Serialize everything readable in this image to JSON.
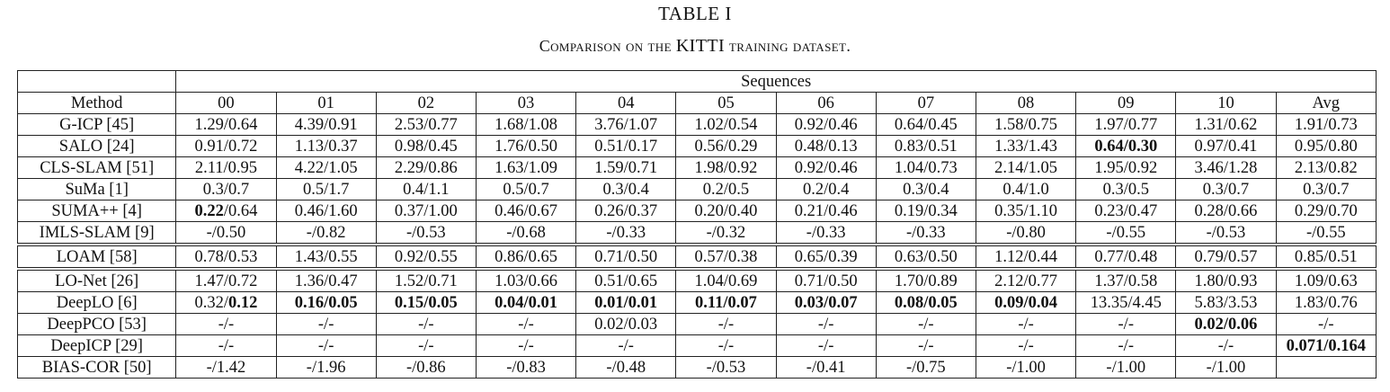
{
  "caption": {
    "label": "TABLE I",
    "title_prefix": "Comparison on the ",
    "title_dataset": "KITTI",
    "title_suffix": " training dataset."
  },
  "table": {
    "method_header": "Method",
    "group_header": "Sequences",
    "columns": [
      "00",
      "01",
      "02",
      "03",
      "04",
      "05",
      "06",
      "07",
      "08",
      "09",
      "10",
      "Avg"
    ],
    "groups": [
      [
        {
          "method": "G-ICP [45]",
          "cells": [
            {
              "t": "1.29/0.64"
            },
            {
              "t": "4.39/0.91"
            },
            {
              "t": "2.53/0.77"
            },
            {
              "t": "1.68/1.08"
            },
            {
              "t": "3.76/1.07"
            },
            {
              "t": "1.02/0.54"
            },
            {
              "t": "0.92/0.46"
            },
            {
              "t": "0.64/0.45"
            },
            {
              "t": "1.58/0.75"
            },
            {
              "t": "1.97/0.77"
            },
            {
              "t": "1.31/0.62"
            },
            {
              "t": "1.91/0.73"
            }
          ]
        },
        {
          "method": "SALO [24]",
          "cells": [
            {
              "t": "0.91/0.72"
            },
            {
              "t": "1.13/0.37"
            },
            {
              "t": "0.98/0.45"
            },
            {
              "t": "1.76/0.50"
            },
            {
              "t": "0.51/0.17"
            },
            {
              "t": "0.56/0.29"
            },
            {
              "t": "0.48/0.13"
            },
            {
              "t": "0.83/0.51"
            },
            {
              "t": "1.33/1.43"
            },
            {
              "t": "0.64/0.30",
              "b": true
            },
            {
              "t": "0.97/0.41"
            },
            {
              "t": "0.95/0.80"
            }
          ]
        },
        {
          "method": "CLS-SLAM [51]",
          "cells": [
            {
              "t": "2.11/0.95"
            },
            {
              "t": "4.22/1.05"
            },
            {
              "t": "2.29/0.86"
            },
            {
              "t": "1.63/1.09"
            },
            {
              "t": "1.59/0.71"
            },
            {
              "t": "1.98/0.92"
            },
            {
              "t": "0.92/0.46"
            },
            {
              "t": "1.04/0.73"
            },
            {
              "t": "2.14/1.05"
            },
            {
              "t": "1.95/0.92"
            },
            {
              "t": "3.46/1.28"
            },
            {
              "t": "2.13/0.82"
            }
          ]
        },
        {
          "method": "SuMa [1]",
          "cells": [
            {
              "t": "0.3/0.7"
            },
            {
              "t": "0.5/1.7"
            },
            {
              "t": "0.4/1.1"
            },
            {
              "t": "0.5/0.7"
            },
            {
              "t": "0.3/0.4"
            },
            {
              "t": "0.2/0.5"
            },
            {
              "t": "0.2/0.4"
            },
            {
              "t": "0.3/0.4"
            },
            {
              "t": "0.4/1.0"
            },
            {
              "t": "0.3/0.5"
            },
            {
              "t": "0.3/0.7"
            },
            {
              "t": "0.3/0.7"
            }
          ]
        },
        {
          "method": "SUMA++ [4]",
          "cells": [
            {
              "p": [
                {
                  "t": "0.22",
                  "b": true
                },
                {
                  "t": "/0.64"
                }
              ]
            },
            {
              "t": "0.46/1.60"
            },
            {
              "t": "0.37/1.00"
            },
            {
              "t": "0.46/0.67"
            },
            {
              "t": "0.26/0.37"
            },
            {
              "t": "0.20/0.40"
            },
            {
              "t": "0.21/0.46"
            },
            {
              "t": "0.19/0.34"
            },
            {
              "t": "0.35/1.10"
            },
            {
              "t": "0.23/0.47"
            },
            {
              "t": "0.28/0.66"
            },
            {
              "t": "0.29/0.70"
            }
          ]
        },
        {
          "method": "IMLS-SLAM [9]",
          "cells": [
            {
              "t": "-/0.50"
            },
            {
              "t": "-/0.82"
            },
            {
              "t": "-/0.53"
            },
            {
              "t": "-/0.68"
            },
            {
              "t": "-/0.33"
            },
            {
              "t": "-/0.32"
            },
            {
              "t": "-/0.33"
            },
            {
              "t": "-/0.33"
            },
            {
              "t": "-/0.80"
            },
            {
              "t": "-/0.55"
            },
            {
              "t": "-/0.53"
            },
            {
              "t": "-/0.55"
            }
          ]
        }
      ],
      [
        {
          "method": "LOAM [58]",
          "cells": [
            {
              "t": "0.78/0.53"
            },
            {
              "t": "1.43/0.55"
            },
            {
              "t": "0.92/0.55"
            },
            {
              "t": "0.86/0.65"
            },
            {
              "t": "0.71/0.50"
            },
            {
              "t": "0.57/0.38"
            },
            {
              "t": "0.65/0.39"
            },
            {
              "t": "0.63/0.50"
            },
            {
              "t": "1.12/0.44"
            },
            {
              "t": "0.77/0.48"
            },
            {
              "t": "0.79/0.57"
            },
            {
              "t": "0.85/0.51"
            }
          ]
        }
      ],
      [
        {
          "method": "LO-Net [26]",
          "cells": [
            {
              "t": "1.47/0.72"
            },
            {
              "t": "1.36/0.47"
            },
            {
              "t": "1.52/0.71"
            },
            {
              "t": "1.03/0.66"
            },
            {
              "t": "0.51/0.65"
            },
            {
              "t": "1.04/0.69"
            },
            {
              "t": "0.71/0.50"
            },
            {
              "t": "1.70/0.89"
            },
            {
              "t": "2.12/0.77"
            },
            {
              "t": "1.37/0.58"
            },
            {
              "t": "1.80/0.93"
            },
            {
              "t": "1.09/0.63"
            }
          ]
        },
        {
          "method": "DeepLO [6]",
          "cells": [
            {
              "p": [
                {
                  "t": "0.32/"
                },
                {
                  "t": "0.12",
                  "b": true
                }
              ]
            },
            {
              "t": "0.16/0.05",
              "b": true
            },
            {
              "t": "0.15/0.05",
              "b": true
            },
            {
              "t": "0.04/0.01",
              "b": true
            },
            {
              "t": "0.01/0.01",
              "b": true
            },
            {
              "t": "0.11/0.07",
              "b": true
            },
            {
              "t": "0.03/0.07",
              "b": true
            },
            {
              "t": "0.08/0.05",
              "b": true
            },
            {
              "t": "0.09/0.04",
              "b": true
            },
            {
              "t": "13.35/4.45"
            },
            {
              "t": "5.83/3.53"
            },
            {
              "t": "1.83/0.76"
            }
          ]
        },
        {
          "method": "DeepPCO [53]",
          "cells": [
            {
              "t": "-/-"
            },
            {
              "t": "-/-"
            },
            {
              "t": "-/-"
            },
            {
              "t": "-/-"
            },
            {
              "t": "0.02/0.03"
            },
            {
              "t": "-/-"
            },
            {
              "t": "-/-"
            },
            {
              "t": "-/-"
            },
            {
              "t": "-/-"
            },
            {
              "t": "-/-"
            },
            {
              "t": "0.02/0.06",
              "b": true
            },
            {
              "t": "-/-"
            }
          ]
        },
        {
          "method": "DeepICP [29]",
          "cells": [
            {
              "t": "-/-"
            },
            {
              "t": "-/-"
            },
            {
              "t": "-/-"
            },
            {
              "t": "-/-"
            },
            {
              "t": "-/-"
            },
            {
              "t": "-/-"
            },
            {
              "t": "-/-"
            },
            {
              "t": "-/-"
            },
            {
              "t": "-/-"
            },
            {
              "t": "-/-"
            },
            {
              "t": "-/-"
            },
            {
              "t": "0.071/0.164",
              "b": true
            }
          ]
        },
        {
          "method": "BIAS-COR [50]",
          "cells": [
            {
              "t": "-/1.42"
            },
            {
              "t": "-/1.96"
            },
            {
              "t": "-/0.86"
            },
            {
              "t": "-/0.83"
            },
            {
              "t": "-/0.48"
            },
            {
              "t": "-/0.53"
            },
            {
              "t": "-/0.41"
            },
            {
              "t": "-/0.75"
            },
            {
              "t": "-/1.00"
            },
            {
              "t": "-/1.00"
            },
            {
              "t": "-/1.00"
            },
            {
              "t": ""
            }
          ]
        }
      ]
    ]
  }
}
